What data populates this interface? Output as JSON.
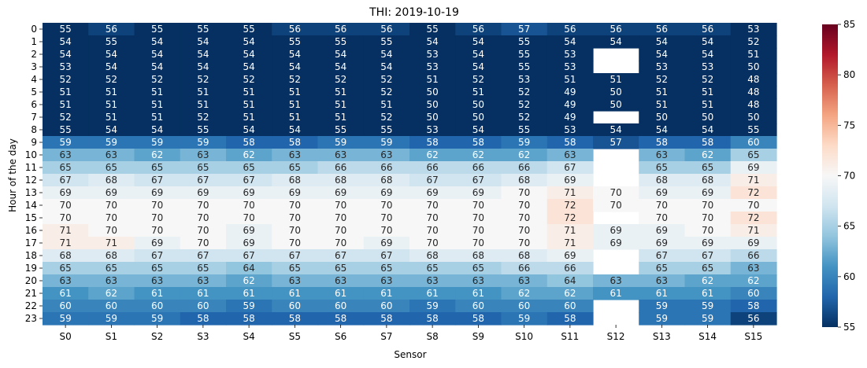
{
  "chart_data": {
    "type": "heatmap",
    "title": "THI: 2019-10-19",
    "xlabel": "Sensor",
    "ylabel": "Hour of the day",
    "x_categories": [
      "S0",
      "S1",
      "S2",
      "S3",
      "S4",
      "S5",
      "S6",
      "S7",
      "S8",
      "S9",
      "S10",
      "S11",
      "S12",
      "S13",
      "S14",
      "S15"
    ],
    "y_categories": [
      "0",
      "1",
      "2",
      "3",
      "4",
      "5",
      "6",
      "7",
      "8",
      "9",
      "10",
      "11",
      "12",
      "13",
      "14",
      "15",
      "16",
      "17",
      "18",
      "19",
      "20",
      "21",
      "22",
      "23"
    ],
    "values": [
      [
        55,
        56,
        55,
        55,
        55,
        56,
        56,
        56,
        55,
        56,
        57,
        56,
        56,
        56,
        56,
        53
      ],
      [
        54,
        55,
        54,
        54,
        54,
        55,
        55,
        55,
        54,
        54,
        55,
        54,
        54,
        54,
        54,
        52
      ],
      [
        54,
        54,
        54,
        54,
        54,
        54,
        54,
        54,
        53,
        54,
        55,
        53,
        null,
        54,
        54,
        51
      ],
      [
        53,
        54,
        54,
        54,
        54,
        54,
        54,
        54,
        53,
        54,
        55,
        53,
        null,
        53,
        53,
        50
      ],
      [
        52,
        52,
        52,
        52,
        52,
        52,
        52,
        52,
        51,
        52,
        53,
        51,
        51,
        52,
        52,
        48
      ],
      [
        51,
        51,
        51,
        51,
        51,
        51,
        51,
        52,
        50,
        51,
        52,
        49,
        50,
        51,
        51,
        48
      ],
      [
        51,
        51,
        51,
        51,
        51,
        51,
        51,
        51,
        50,
        50,
        52,
        49,
        50,
        51,
        51,
        48
      ],
      [
        52,
        51,
        51,
        52,
        51,
        51,
        51,
        52,
        50,
        50,
        52,
        49,
        null,
        50,
        50,
        50
      ],
      [
        55,
        54,
        54,
        55,
        54,
        54,
        55,
        55,
        53,
        54,
        55,
        53,
        54,
        54,
        54,
        55
      ],
      [
        59,
        59,
        59,
        59,
        58,
        58,
        59,
        59,
        58,
        58,
        59,
        58,
        57,
        58,
        58,
        60
      ],
      [
        63,
        63,
        62,
        63,
        62,
        63,
        63,
        63,
        62,
        62,
        62,
        63,
        null,
        63,
        62,
        65
      ],
      [
        65,
        65,
        65,
        65,
        65,
        65,
        66,
        66,
        66,
        66,
        66,
        67,
        null,
        65,
        65,
        69
      ],
      [
        67,
        68,
        67,
        67,
        67,
        68,
        68,
        68,
        67,
        67,
        68,
        69,
        null,
        68,
        68,
        71
      ],
      [
        69,
        69,
        69,
        69,
        69,
        69,
        69,
        69,
        69,
        69,
        70,
        71,
        70,
        69,
        69,
        72
      ],
      [
        70,
        70,
        70,
        70,
        70,
        70,
        70,
        70,
        70,
        70,
        70,
        72,
        70,
        70,
        70,
        70
      ],
      [
        70,
        70,
        70,
        70,
        70,
        70,
        70,
        70,
        70,
        70,
        70,
        72,
        null,
        70,
        70,
        72
      ],
      [
        71,
        70,
        70,
        70,
        69,
        70,
        70,
        70,
        70,
        70,
        70,
        71,
        69,
        69,
        70,
        71
      ],
      [
        71,
        71,
        69,
        70,
        69,
        70,
        70,
        69,
        70,
        70,
        70,
        71,
        69,
        69,
        69,
        69
      ],
      [
        68,
        68,
        67,
        67,
        67,
        67,
        67,
        67,
        68,
        68,
        68,
        69,
        null,
        67,
        67,
        66
      ],
      [
        65,
        65,
        65,
        65,
        64,
        65,
        65,
        65,
        65,
        65,
        66,
        66,
        null,
        65,
        65,
        63
      ],
      [
        63,
        63,
        63,
        63,
        62,
        63,
        63,
        63,
        63,
        63,
        63,
        64,
        63,
        63,
        62,
        62
      ],
      [
        61,
        62,
        61,
        61,
        61,
        61,
        61,
        61,
        61,
        61,
        62,
        62,
        61,
        61,
        61,
        60
      ],
      [
        60,
        60,
        60,
        60,
        59,
        60,
        60,
        60,
        59,
        60,
        60,
        60,
        null,
        59,
        59,
        58
      ],
      [
        59,
        59,
        59,
        58,
        58,
        58,
        58,
        58,
        58,
        58,
        59,
        58,
        null,
        59,
        59,
        56
      ]
    ],
    "colormap": "RdBu_r",
    "color_range": [
      55,
      85
    ],
    "colorbar_ticks": [
      55,
      60,
      65,
      70,
      75,
      80,
      85
    ],
    "colormap_stops": [
      "#053061",
      "#2166ac",
      "#4393c3",
      "#92c5de",
      "#d1e5f0",
      "#f7f7f7",
      "#fddbc7",
      "#f4a582",
      "#d6604d",
      "#b2182b",
      "#67001f"
    ]
  }
}
